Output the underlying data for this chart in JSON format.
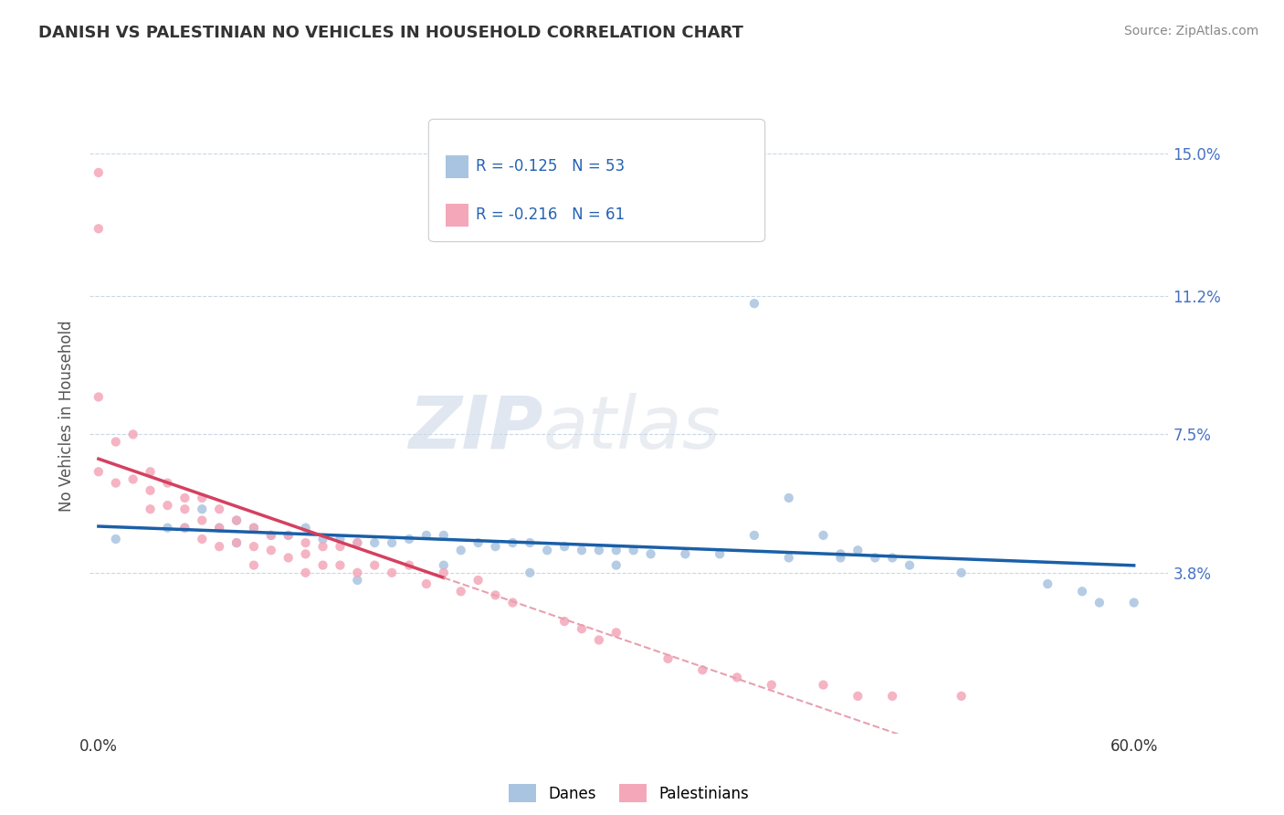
{
  "title": "DANISH VS PALESTINIAN NO VEHICLES IN HOUSEHOLD CORRELATION CHART",
  "source": "Source: ZipAtlas.com",
  "ylabel": "No Vehicles in Household",
  "yticks": [
    0.038,
    0.075,
    0.112,
    0.15
  ],
  "ytick_labels": [
    "3.8%",
    "7.5%",
    "11.2%",
    "15.0%"
  ],
  "xlim": [
    -0.005,
    0.62
  ],
  "ylim": [
    -0.005,
    0.165
  ],
  "danes_color": "#a8c4e0",
  "danes_line_color": "#1a5fa8",
  "palestinians_color": "#f4a7b9",
  "palestinians_line_color": "#d44060",
  "palestinians_dash_color": "#e8a0b0",
  "legend_r_danes": "R = -0.125",
  "legend_n_danes": "N = 53",
  "legend_r_pal": "R = -0.216",
  "legend_n_pal": "N = 61",
  "danes_label": "Danes",
  "palestinians_label": "Palestinians",
  "watermark_zip": "ZIP",
  "watermark_atlas": "atlas",
  "background_color": "#ffffff",
  "danes_x": [
    0.38,
    0.01,
    0.04,
    0.05,
    0.06,
    0.07,
    0.08,
    0.08,
    0.09,
    0.1,
    0.11,
    0.12,
    0.13,
    0.14,
    0.15,
    0.16,
    0.17,
    0.18,
    0.19,
    0.2,
    0.21,
    0.22,
    0.23,
    0.24,
    0.25,
    0.26,
    0.27,
    0.28,
    0.29,
    0.3,
    0.31,
    0.32,
    0.34,
    0.36,
    0.4,
    0.42,
    0.43,
    0.43,
    0.44,
    0.45,
    0.46,
    0.47,
    0.5,
    0.55,
    0.57,
    0.58,
    0.6,
    0.4,
    0.38,
    0.3,
    0.25,
    0.2,
    0.15
  ],
  "danes_y": [
    0.11,
    0.047,
    0.05,
    0.05,
    0.055,
    0.05,
    0.052,
    0.046,
    0.05,
    0.048,
    0.048,
    0.05,
    0.047,
    0.047,
    0.046,
    0.046,
    0.046,
    0.047,
    0.048,
    0.048,
    0.044,
    0.046,
    0.045,
    0.046,
    0.046,
    0.044,
    0.045,
    0.044,
    0.044,
    0.044,
    0.044,
    0.043,
    0.043,
    0.043,
    0.058,
    0.048,
    0.043,
    0.042,
    0.044,
    0.042,
    0.042,
    0.04,
    0.038,
    0.035,
    0.033,
    0.03,
    0.03,
    0.042,
    0.048,
    0.04,
    0.038,
    0.04,
    0.036
  ],
  "pal_x": [
    0.0,
    0.0,
    0.0,
    0.0,
    0.01,
    0.01,
    0.02,
    0.02,
    0.03,
    0.03,
    0.03,
    0.04,
    0.04,
    0.05,
    0.05,
    0.05,
    0.06,
    0.06,
    0.06,
    0.07,
    0.07,
    0.07,
    0.08,
    0.08,
    0.09,
    0.09,
    0.09,
    0.1,
    0.1,
    0.11,
    0.11,
    0.12,
    0.12,
    0.12,
    0.13,
    0.13,
    0.14,
    0.14,
    0.15,
    0.15,
    0.16,
    0.17,
    0.18,
    0.19,
    0.2,
    0.21,
    0.22,
    0.23,
    0.24,
    0.27,
    0.28,
    0.29,
    0.3,
    0.33,
    0.35,
    0.37,
    0.39,
    0.42,
    0.44,
    0.46,
    0.5
  ],
  "pal_y": [
    0.145,
    0.13,
    0.085,
    0.065,
    0.073,
    0.062,
    0.075,
    0.063,
    0.065,
    0.06,
    0.055,
    0.062,
    0.056,
    0.058,
    0.055,
    0.05,
    0.058,
    0.052,
    0.047,
    0.055,
    0.05,
    0.045,
    0.052,
    0.046,
    0.05,
    0.045,
    0.04,
    0.048,
    0.044,
    0.048,
    0.042,
    0.046,
    0.043,
    0.038,
    0.045,
    0.04,
    0.045,
    0.04,
    0.046,
    0.038,
    0.04,
    0.038,
    0.04,
    0.035,
    0.038,
    0.033,
    0.036,
    0.032,
    0.03,
    0.025,
    0.023,
    0.02,
    0.022,
    0.015,
    0.012,
    0.01,
    0.008,
    0.008,
    0.005,
    0.005,
    0.005
  ]
}
